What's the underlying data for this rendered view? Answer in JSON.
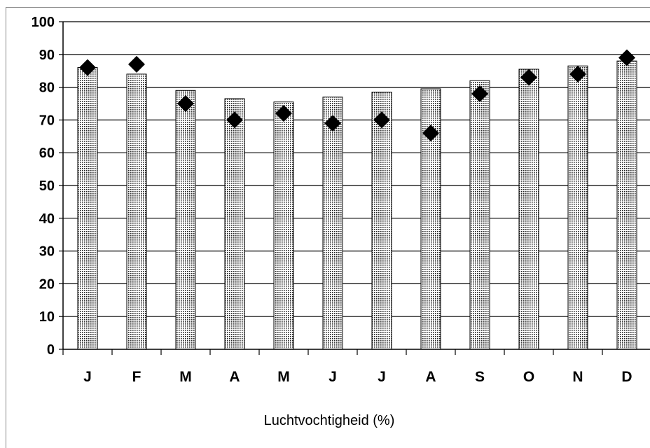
{
  "chart_data": {
    "type": "bar",
    "categories": [
      "J",
      "F",
      "M",
      "A",
      "M",
      "J",
      "J",
      "A",
      "S",
      "O",
      "N",
      "D"
    ],
    "series": [
      {
        "type": "bar",
        "values": [
          86,
          84,
          79,
          76.5,
          75.5,
          77,
          78.5,
          79.5,
          82,
          85.5,
          86.5,
          88
        ]
      },
      {
        "type": "scatter",
        "values": [
          86,
          87,
          75,
          70,
          72,
          69,
          70,
          66,
          78,
          83,
          84,
          89
        ]
      }
    ],
    "title": "",
    "xlabel": "Luchtvochtigheid (%)",
    "ylabel": "",
    "ylim": [
      0,
      100
    ],
    "yticks": [
      0,
      10,
      20,
      30,
      40,
      50,
      60,
      70,
      80,
      90,
      100
    ],
    "grid": true,
    "legend": "none"
  }
}
